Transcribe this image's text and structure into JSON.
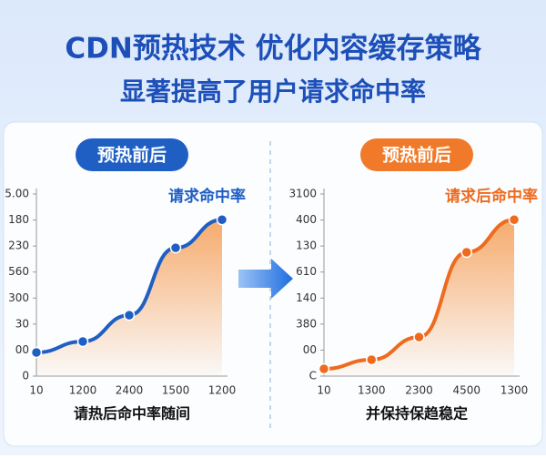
{
  "header": {
    "title": "CDN预热技术  优化内容缓存策略",
    "subtitle": "显著提高了用户请求命中率"
  },
  "chart_data": [
    {
      "type": "line",
      "title": "预热前后",
      "caption": "请热后命中率随间",
      "categories": [
        "10",
        "1200",
        "2400",
        "1500",
        "1200"
      ],
      "series": [
        {
          "name": "请求命中率",
          "color": "#1f5fc4",
          "values": [
            0.91,
            1.33,
            2.34,
            4.93,
            6.01
          ]
        }
      ],
      "ylim": [
        0,
        7
      ],
      "yticks": [
        {
          "value": 0,
          "label": "0"
        },
        {
          "value": 1,
          "label": "00"
        },
        {
          "value": 2,
          "label": "30"
        },
        {
          "value": 3,
          "label": "300"
        },
        {
          "value": 4,
          "label": "560"
        },
        {
          "value": 5,
          "label": "230"
        },
        {
          "value": 6,
          "label": "180"
        },
        {
          "value": 7,
          "label": "5.00"
        }
      ],
      "area_color": "#f5a25d",
      "badge_color": "#1f5fc4"
    },
    {
      "type": "line",
      "title": "预热前后",
      "caption": "并保持保趋稳定",
      "categories": [
        "10",
        "1300",
        "2300",
        "4500",
        "1300"
      ],
      "series": [
        {
          "name": "请求后命中率",
          "color": "#ee6a1e",
          "values": [
            0.28,
            0.63,
            1.5,
            4.76,
            6.01
          ]
        }
      ],
      "ylim": [
        0,
        7
      ],
      "yticks": [
        {
          "value": 0,
          "label": "C"
        },
        {
          "value": 1,
          "label": "00"
        },
        {
          "value": 2,
          "label": "380"
        },
        {
          "value": 3,
          "label": "140"
        },
        {
          "value": 4,
          "label": "610"
        },
        {
          "value": 5,
          "label": "130"
        },
        {
          "value": 6,
          "label": "400"
        },
        {
          "value": 7,
          "label": "3100"
        }
      ],
      "area_color": "#f5a25d",
      "badge_color": "#f07a2a"
    }
  ]
}
